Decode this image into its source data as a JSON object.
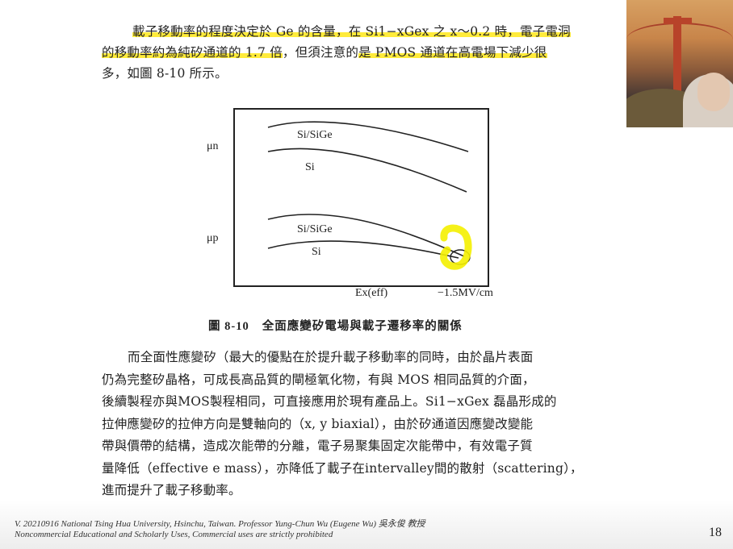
{
  "paragraph1": {
    "line1": "載子移動率的程度決定於 Ge 的含量，在 Si1−xGex 之 x～0.2 時，電子電洞",
    "line2_hl": "的移動率約為純矽通道的 1.7 倍",
    "line2_rest": "，但須注意的",
    "line2_hl2": "是 PMOS 通道在高電場下減少很",
    "line3": "多，如圖 8-10 所示。"
  },
  "figure": {
    "mu_n": "μn",
    "mu_p": "μp",
    "curve_n_top": "Si/SiGe",
    "curve_n_bottom": "Si",
    "curve_p_top": "Si/SiGe",
    "curve_p_bottom": "Si",
    "x_label": "Ex(eff)",
    "x_value": "−1.5MV/cm",
    "annotation_color": "#f4f000"
  },
  "caption": {
    "number": "圖 8-10",
    "text": "全面應變矽電場與載子遷移率的關係"
  },
  "paragraph2": {
    "lines": [
      "而全面性應變矽（最大的優點在於提升載子移動率的同時，由於晶片表面",
      "仍為完整矽晶格，可成長高品質的閘極氧化物，有與 MOS 相同品質的介面，",
      "後續製程亦與MOS製程相同，可直接應用於現有產品上。Si1−xGex 磊晶形成的",
      "拉伸應變矽的拉伸方向是雙軸向的（x, y biaxial），由於矽通道因應變改變能",
      "帶與價帶的結構，造成次能帶的分離，電子易聚集固定次能帶中，有效電子質",
      "量降低（effective e mass），亦降低了載子在intervalley間的散射（scattering），",
      "進而提升了載子移動率。"
    ]
  },
  "footer": {
    "line1": "V. 20210916 National Tsing Hua University, Hsinchu, Taiwan. Professor Yung-Chun Wu (Eugene Wu) 吳永俊 教授",
    "line2": "Noncommercial Educational and Scholarly Uses, Commercial uses are strictly prohibited"
  },
  "page_number": "18",
  "highlight_color": "#ffeb3b"
}
